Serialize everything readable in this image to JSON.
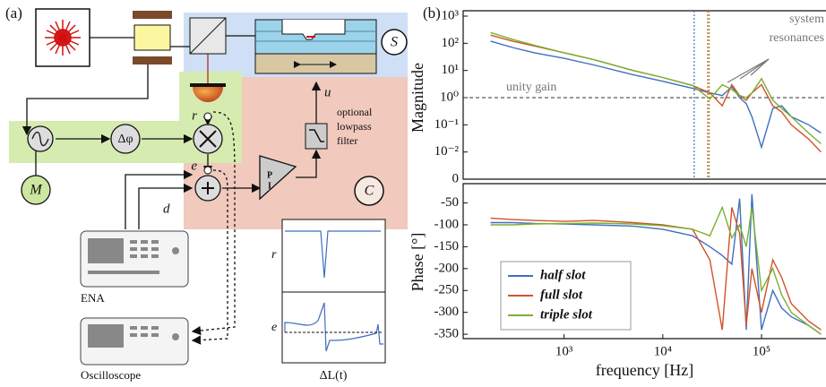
{
  "diagram": {
    "label": "(a)",
    "system": "S",
    "modulation": "M",
    "controller": "C",
    "phase_shift": "Δφ",
    "signals": {
      "r": "r",
      "e": "e",
      "u": "u",
      "d": "d"
    },
    "controller_terms": [
      "P",
      "I"
    ],
    "filter": [
      "optional",
      "lowpass",
      "filter"
    ],
    "instruments": [
      "ENA",
      "Oscilloscope"
    ],
    "inset": {
      "top_label": "r",
      "bottom_label": "e",
      "x_label": "ΔL(t)"
    }
  },
  "chart_label": "(b)",
  "chart_data": [
    {
      "type": "line",
      "ylabel": "Magnitude",
      "xscale": "log",
      "yscale": "symlog",
      "linthresh": 0.01,
      "xlim": [
        95,
        450000
      ],
      "ylim": [
        0,
        1000
      ],
      "yticks": [
        {
          "value": 1000,
          "label": "10³"
        },
        {
          "value": 100,
          "label": "10²"
        },
        {
          "value": 10,
          "label": "10¹"
        },
        {
          "value": 1,
          "label": "10⁰"
        },
        {
          "value": 0.1,
          "label": "10⁻¹"
        },
        {
          "value": 0.01,
          "label": "10⁻²"
        },
        0
      ],
      "hline": {
        "value": 1,
        "label": "unity gain"
      },
      "annotation": [
        "system",
        "resonances"
      ],
      "vlines": [
        {
          "value": 20800,
          "color": "#3f6fbf"
        },
        {
          "value": 28500,
          "color": "#d0542a"
        },
        {
          "value": 29500,
          "color": "#8a9a20"
        }
      ],
      "x": [
        180,
        300,
        500,
        1000,
        2000,
        5000,
        10000,
        20000,
        30000,
        40000,
        50000,
        60000,
        70000,
        80000,
        100000,
        130000,
        160000,
        200000,
        300000,
        400000
      ],
      "series": [
        {
          "color": "#3f6fbf",
          "values": [
            120,
            70,
            45,
            28,
            16,
            7,
            4,
            2.2,
            1.5,
            1.2,
            2.5,
            1.0,
            0.6,
            0.2,
            0.015,
            0.4,
            0.5,
            0.2,
            0.1,
            0.05
          ]
        },
        {
          "color": "#d0542a",
          "values": [
            200,
            120,
            80,
            45,
            25,
            10,
            5.5,
            2.8,
            1.5,
            0.5,
            3,
            1.2,
            0.8,
            1.5,
            3,
            0.5,
            0.3,
            0.1,
            0.03,
            0.01
          ]
        },
        {
          "color": "#7ab032",
          "values": [
            250,
            140,
            85,
            45,
            25,
            10,
            5.5,
            2.8,
            0.9,
            3,
            2,
            1.2,
            1,
            1.5,
            5,
            0.8,
            0.4,
            0.2,
            0.05,
            0.02
          ]
        }
      ]
    },
    {
      "type": "line",
      "ylabel": "Phase [°]",
      "xlabel": "frequency [Hz]",
      "xscale": "log",
      "xlim": [
        95,
        450000
      ],
      "ylim": [
        -360,
        -10
      ],
      "xticks": [
        {
          "value": 1000,
          "label": "10³"
        },
        {
          "value": 10000,
          "label": "10⁴"
        },
        {
          "value": 100000,
          "label": "10⁵"
        }
      ],
      "yticks": [
        -50,
        -100,
        -150,
        -200,
        -250,
        -300,
        -350
      ],
      "legend": "lower left",
      "x": [
        180,
        300,
        500,
        1000,
        2000,
        5000,
        10000,
        20000,
        30000,
        40000,
        50000,
        60000,
        70000,
        80000,
        100000,
        130000,
        160000,
        200000,
        300000,
        400000
      ],
      "series": [
        {
          "name": "half slot",
          "color": "#3f6fbf",
          "values": [
            -95,
            -95,
            -97,
            -98,
            -100,
            -103,
            -110,
            -125,
            -150,
            -170,
            -190,
            -40,
            -340,
            -30,
            -340,
            -250,
            -290,
            -310,
            -330,
            -350
          ]
        },
        {
          "name": "full slot",
          "color": "#d0542a",
          "values": [
            -85,
            -88,
            -90,
            -92,
            -90,
            -95,
            -100,
            -110,
            -180,
            -340,
            -60,
            -120,
            -330,
            -200,
            -300,
            -180,
            -220,
            -280,
            -320,
            -340
          ]
        },
        {
          "name": "triple slot",
          "color": "#7ab032",
          "values": [
            -100,
            -100,
            -98,
            -97,
            -96,
            -98,
            -102,
            -110,
            -125,
            -60,
            -130,
            -100,
            -150,
            -60,
            -250,
            -200,
            -260,
            -300,
            -330,
            -350
          ]
        }
      ]
    }
  ]
}
